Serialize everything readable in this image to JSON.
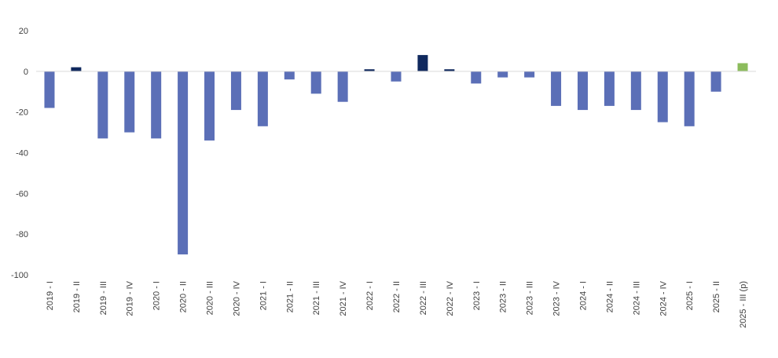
{
  "chart_data": {
    "type": "bar",
    "title": "",
    "xlabel": "",
    "ylabel": "",
    "ylim": [
      -100,
      20
    ],
    "yticks": [
      20,
      0,
      -20,
      -40,
      -60,
      -80,
      -100
    ],
    "grid": false,
    "legend": "none",
    "categories": [
      "2019 - I",
      "2019 - II",
      "2019 - III",
      "2019 - IV",
      "2020 - I",
      "2020 - II",
      "2020 - III",
      "2020 - IV",
      "2021 - I",
      "2021 - II",
      "2021 - III",
      "2021 - IV",
      "2022 - I",
      "2022 - II",
      "2022 - III",
      "2022 - IV",
      "2023 - I",
      "2023 - II",
      "2023 - III",
      "2023 - IV",
      "2024 - I",
      "2024 - II",
      "2024 - III",
      "2024 - IV",
      "2025 - I",
      "2025 - II",
      "2025 - III (p)"
    ],
    "values": [
      -18,
      2,
      -33,
      -30,
      -33,
      -90,
      -34,
      -19,
      -27,
      -4,
      -11,
      -15,
      1,
      -5,
      8,
      1,
      -6,
      -3,
      -3,
      -17,
      -19,
      -17,
      -19,
      -25,
      -27,
      -10,
      4
    ],
    "colors": {
      "negative": "#5b6fb7",
      "positive": "#10295e",
      "projected": "#8cbc5c",
      "axis": "#d9d9d9"
    },
    "projected_index": 26
  }
}
